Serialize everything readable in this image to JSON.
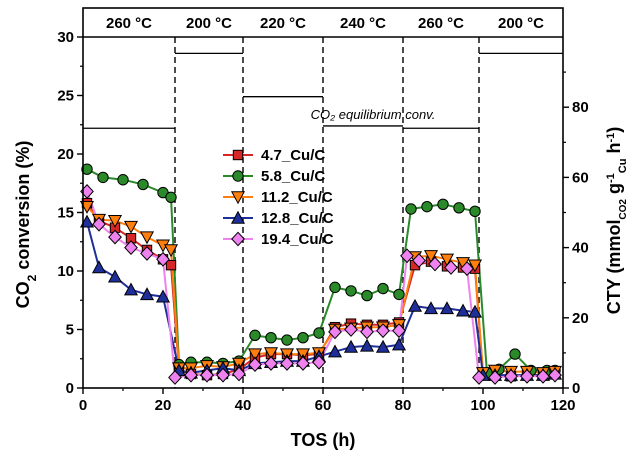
{
  "chart_data": {
    "type": "line",
    "xlabel": "TOS (h)",
    "ylabel_left": {
      "base": "CO",
      "sub": "2",
      "rest": " conversion (%)"
    },
    "ylabel_right": {
      "text": "CTY (mmol",
      "sub1": "CO2",
      "mid": " g",
      "sup1": "-1",
      "sub2": "Cu",
      "end": " h",
      "sup2": "-1",
      "close": ")"
    },
    "xlim": [
      0,
      120
    ],
    "ylim_left": [
      0,
      30
    ],
    "ylim_right": [
      0,
      100
    ],
    "xticks": [
      0,
      20,
      40,
      60,
      80,
      100,
      120
    ],
    "yticks_left": [
      0,
      5,
      10,
      15,
      20,
      25,
      30
    ],
    "yticks_right": [
      0,
      20,
      40,
      60,
      80
    ],
    "temperature_segments": [
      {
        "label": "260 °C",
        "x0": 0,
        "x1": 23
      },
      {
        "label": "200 °C",
        "x0": 23,
        "x1": 40
      },
      {
        "label": "220 °C",
        "x0": 40,
        "x1": 60
      },
      {
        "label": "240 °C",
        "x0": 60,
        "x1": 80
      },
      {
        "label": "260 °C",
        "x0": 80,
        "x1": 99
      },
      {
        "label": "200 °C",
        "x0": 99,
        "x1": 120
      }
    ],
    "segment_boundaries": [
      23,
      40,
      60,
      80,
      99
    ],
    "equilibrium_annotation": "CO₂ equilibrium conv.",
    "equilibrium_lines": [
      {
        "x0": 0,
        "x1": 23,
        "y": 22.2
      },
      {
        "x0": 23,
        "x1": 40,
        "y": 28.6
      },
      {
        "x0": 40,
        "x1": 60,
        "y": 24.9
      },
      {
        "x0": 60,
        "x1": 80,
        "y": 22.4
      },
      {
        "x0": 80,
        "x1": 99,
        "y": 22.2
      },
      {
        "x0": 99,
        "x1": 120,
        "y": 28.6
      }
    ],
    "series": [
      {
        "name": "4.7_Cu/C",
        "marker": "square",
        "color": "#d62728",
        "x": [
          1,
          4,
          8,
          12,
          16,
          20,
          22,
          24,
          27,
          31,
          35,
          39,
          43,
          47,
          51,
          55,
          59,
          63,
          67,
          71,
          75,
          79,
          83,
          87,
          91,
          95,
          98,
          100,
          103,
          107,
          111,
          115,
          118
        ],
        "y": [
          15.8,
          14.3,
          13.7,
          12.8,
          11.8,
          11.0,
          10.5,
          1.5,
          1.2,
          1.1,
          1.2,
          1.6,
          2.6,
          2.9,
          2.9,
          2.8,
          2.9,
          5.2,
          5.5,
          5.4,
          5.4,
          5.6,
          10.5,
          10.8,
          10.4,
          10.3,
          10.2,
          1.2,
          1.1,
          1.0,
          1.1,
          1.1,
          1.2
        ]
      },
      {
        "name": "5.8_Cu/C",
        "marker": "circle",
        "color": "#2a8a2a",
        "x": [
          1,
          5,
          10,
          15,
          20,
          22,
          24,
          27,
          31,
          35,
          39,
          43,
          47,
          51,
          55,
          59,
          63,
          67,
          71,
          75,
          79,
          82,
          86,
          90,
          94,
          98,
          101,
          104,
          108,
          112,
          116,
          118
        ],
        "y": [
          18.7,
          18.0,
          17.8,
          17.4,
          16.7,
          16.3,
          2.0,
          2.2,
          2.2,
          2.1,
          2.3,
          4.5,
          4.3,
          4.1,
          4.3,
          4.7,
          8.6,
          8.3,
          7.9,
          8.5,
          8.0,
          15.3,
          15.5,
          15.7,
          15.4,
          15.1,
          1.3,
          1.6,
          2.9,
          1.5,
          1.5,
          1.5
        ]
      },
      {
        "name": "11.2_Cu/C",
        "marker": "triangle-down",
        "color": "#ff7f0e",
        "x": [
          1,
          4,
          8,
          12,
          16,
          20,
          22,
          24,
          27,
          31,
          35,
          39,
          43,
          47,
          51,
          55,
          59,
          63,
          67,
          71,
          75,
          79,
          83,
          87,
          91,
          95,
          98,
          100,
          103,
          107,
          111,
          115,
          118
        ],
        "y": [
          15.5,
          14.4,
          14.3,
          13.8,
          12.9,
          12.2,
          11.8,
          1.7,
          1.7,
          1.9,
          1.8,
          2.1,
          2.9,
          3.0,
          2.9,
          2.9,
          3.0,
          5.0,
          5.1,
          5.2,
          5.2,
          5.4,
          11.2,
          11.3,
          11.0,
          10.7,
          10.5,
          1.3,
          1.5,
          1.4,
          1.4,
          1.3,
          1.4
        ]
      },
      {
        "name": "12.8_Cu/C",
        "marker": "triangle-up",
        "color": "#1f2f9a",
        "x": [
          1,
          4,
          8,
          12,
          16,
          20,
          24,
          27,
          31,
          35,
          39,
          43,
          47,
          51,
          55,
          59,
          63,
          67,
          71,
          75,
          79,
          83,
          87,
          91,
          95,
          98,
          100,
          103,
          107,
          111,
          115,
          118
        ],
        "y": [
          14.2,
          10.3,
          9.5,
          8.4,
          8.0,
          7.8,
          1.5,
          1.3,
          1.5,
          1.7,
          1.5,
          2.1,
          2.2,
          2.3,
          2.3,
          2.7,
          3.1,
          3.5,
          3.6,
          3.5,
          3.7,
          7.0,
          6.8,
          6.8,
          6.6,
          6.5,
          1.1,
          1.1,
          1.1,
          1.1,
          1.1,
          1.2
        ]
      },
      {
        "name": "19.4_Cu/C",
        "marker": "diamond",
        "color": "#ee82ee",
        "x": [
          1,
          4,
          8,
          12,
          16,
          20,
          23,
          27,
          31,
          35,
          39,
          43,
          47,
          51,
          55,
          59,
          63,
          67,
          71,
          75,
          79,
          81,
          84,
          88,
          92,
          96,
          99,
          103,
          107,
          111,
          115,
          118
        ],
        "y": [
          16.8,
          14.0,
          12.9,
          12.0,
          11.5,
          11.0,
          0.9,
          1.1,
          1.1,
          1.1,
          1.2,
          2.0,
          2.1,
          2.1,
          2.1,
          2.2,
          4.8,
          5.0,
          4.8,
          4.9,
          4.9,
          11.3,
          10.9,
          10.6,
          10.3,
          10.2,
          0.9,
          0.9,
          1.0,
          1.0,
          1.0,
          1.1
        ]
      }
    ]
  }
}
